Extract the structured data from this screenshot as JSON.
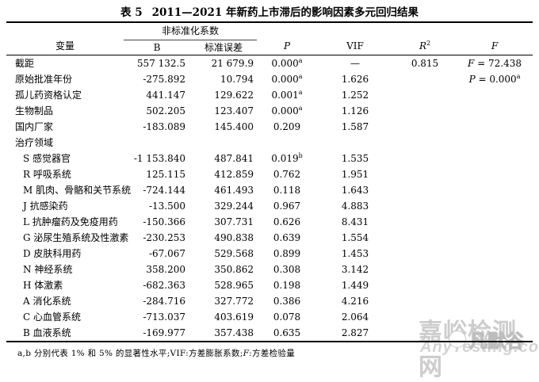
{
  "caption": {
    "label": "表 5",
    "text": "2011—2021 年新药上市滞后的影响因素多元回归结果"
  },
  "header": {
    "variable": "变量",
    "unstd_group": "非标准化系数",
    "b": "B",
    "std_error": "标准误差",
    "p": "P",
    "vif": "VIF",
    "r2_base": "R",
    "r2_sup": "2",
    "f": "F"
  },
  "rows": [
    {
      "name": "截距",
      "indent": false,
      "b": "557 132.5",
      "se": "21 679.9",
      "p": "0.000",
      "p_sup": "a",
      "vif": "—",
      "r2": "0.815",
      "f_label": "F",
      "f_rest": " = 72.438",
      "f_sup": ""
    },
    {
      "name": "原始批准年份",
      "indent": false,
      "b": "-275.892",
      "se": "10.794",
      "p": "0.000",
      "p_sup": "a",
      "vif": "1.626",
      "r2": "",
      "f_label": "P",
      "f_rest": " = 0.000",
      "f_sup": "a"
    },
    {
      "name": "孤儿药资格认定",
      "indent": false,
      "b": "441.147",
      "se": "129.622",
      "p": "0.001",
      "p_sup": "a",
      "vif": "1.252",
      "r2": "",
      "f_label": "",
      "f_rest": "",
      "f_sup": ""
    },
    {
      "name": "生物制品",
      "indent": false,
      "b": "502.205",
      "se": "123.407",
      "p": "0.000",
      "p_sup": "a",
      "vif": "1.126",
      "r2": "",
      "f_label": "",
      "f_rest": "",
      "f_sup": ""
    },
    {
      "name": "国内厂家",
      "indent": false,
      "b": "-183.089",
      "se": "145.400",
      "p": "0.209",
      "p_sup": "",
      "vif": "1.587",
      "r2": "",
      "f_label": "",
      "f_rest": "",
      "f_sup": ""
    },
    {
      "name": "治疗领域",
      "indent": false,
      "b": "",
      "se": "",
      "p": "",
      "p_sup": "",
      "vif": "",
      "r2": "",
      "f_label": "",
      "f_rest": "",
      "f_sup": ""
    },
    {
      "name": "S 感觉器官",
      "indent": true,
      "b": "-1 153.840",
      "se": "487.841",
      "p": "0.019",
      "p_sup": "b",
      "vif": "1.535",
      "r2": "",
      "f_label": "",
      "f_rest": "",
      "f_sup": ""
    },
    {
      "name": "R 呼吸系统",
      "indent": true,
      "b": "125.115",
      "se": "412.859",
      "p": "0.762",
      "p_sup": "",
      "vif": "1.951",
      "r2": "",
      "f_label": "",
      "f_rest": "",
      "f_sup": ""
    },
    {
      "name": "M 肌肉、骨骼和关节系统",
      "indent": true,
      "b": "-724.144",
      "se": "461.493",
      "p": "0.118",
      "p_sup": "",
      "vif": "1.643",
      "r2": "",
      "f_label": "",
      "f_rest": "",
      "f_sup": ""
    },
    {
      "name": "J 抗感染药",
      "indent": true,
      "b": "-13.500",
      "se": "329.244",
      "p": "0.967",
      "p_sup": "",
      "vif": "4.883",
      "r2": "",
      "f_label": "",
      "f_rest": "",
      "f_sup": ""
    },
    {
      "name": "L 抗肿瘤药及免疫用药",
      "indent": true,
      "b": "-150.366",
      "se": "307.731",
      "p": "0.626",
      "p_sup": "",
      "vif": "8.431",
      "r2": "",
      "f_label": "",
      "f_rest": "",
      "f_sup": ""
    },
    {
      "name": "G 泌尿生殖系统及性激素",
      "indent": true,
      "b": "-230.253",
      "se": "490.838",
      "p": "0.639",
      "p_sup": "",
      "vif": "1.554",
      "r2": "",
      "f_label": "",
      "f_rest": "",
      "f_sup": ""
    },
    {
      "name": "D 皮肤科用药",
      "indent": true,
      "b": "-67.067",
      "se": "529.568",
      "p": "0.899",
      "p_sup": "",
      "vif": "1.453",
      "r2": "",
      "f_label": "",
      "f_rest": "",
      "f_sup": ""
    },
    {
      "name": "N 神经系统",
      "indent": true,
      "b": "358.200",
      "se": "350.862",
      "p": "0.308",
      "p_sup": "",
      "vif": "3.142",
      "r2": "",
      "f_label": "",
      "f_rest": "",
      "f_sup": ""
    },
    {
      "name": "H 体激素",
      "indent": true,
      "b": "-682.363",
      "se": "528.965",
      "p": "0.198",
      "p_sup": "",
      "vif": "1.449",
      "r2": "",
      "f_label": "",
      "f_rest": "",
      "f_sup": ""
    },
    {
      "name": "A 消化系统",
      "indent": true,
      "b": "-284.716",
      "se": "327.772",
      "p": "0.386",
      "p_sup": "",
      "vif": "4.216",
      "r2": "",
      "f_label": "",
      "f_rest": "",
      "f_sup": ""
    },
    {
      "name": "C 心血管系统",
      "indent": true,
      "b": "-713.037",
      "se": "403.619",
      "p": "0.078",
      "p_sup": "",
      "vif": "2.064",
      "r2": "",
      "f_label": "",
      "f_rest": "",
      "f_sup": ""
    },
    {
      "name": "B 血液系统",
      "indent": true,
      "b": "-169.977",
      "se": "357.438",
      "p": "0.635",
      "p_sup": "",
      "vif": "2.827",
      "r2": "",
      "f_label": "",
      "f_rest": "",
      "f_sup": ""
    }
  ],
  "footnote": {
    "pre": "a,b 分别代表 1% 和 5% 的显著性水平;VIF:方差膨胀系数;",
    "f_italic": "F",
    "post": ":方差检验量"
  },
  "watermark": {
    "line_cn": "嘉峪检测网",
    "line_en": "AnyTesting.com",
    "overlay": "凡默谷",
    "color": "#cdcdcd"
  }
}
